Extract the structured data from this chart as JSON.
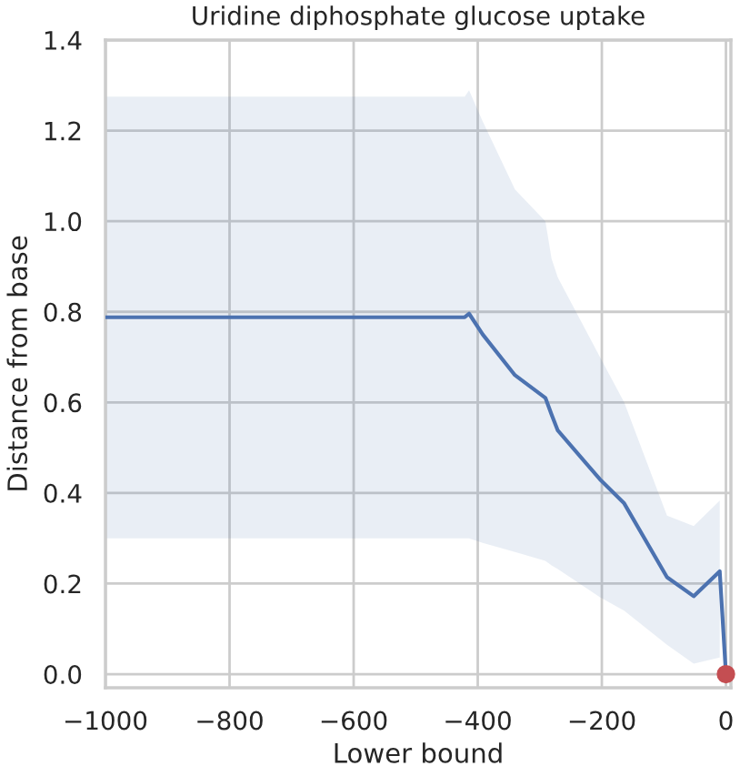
{
  "chart_data": {
    "type": "line",
    "title": "Uridine diphosphate glucose uptake",
    "xlabel": "Lower bound",
    "ylabel": "Distance from base",
    "series": [
      {
        "color": "#4c72b0",
        "x": [
          -1000,
          -421,
          -414,
          -392,
          -340,
          -291,
          -281,
          -271,
          -203,
          -164,
          -95,
          -52,
          -10,
          0
        ],
        "values": [
          0.788,
          0.788,
          0.796,
          0.75,
          0.66,
          0.61,
          0.573,
          0.538,
          0.43,
          0.377,
          0.214,
          0.172,
          0.227,
          0
        ],
        "upper": [
          1.275,
          1.275,
          1.289,
          1.22,
          1.07,
          1.0,
          0.917,
          0.876,
          0.7,
          0.6,
          0.35,
          0.327,
          0.383,
          null
        ],
        "lower": [
          0.3,
          0.3,
          0.3,
          0.29,
          0.27,
          0.25,
          0.24,
          0.232,
          0.17,
          0.14,
          0.065,
          0.023,
          0.037,
          null
        ]
      },
      {
        "type": "scatter",
        "color": "#c44e52",
        "x": [
          0
        ],
        "values": [
          0
        ],
        "marker": "circle"
      }
    ],
    "xlim": [
      -1000,
      8
    ],
    "xticks": [
      -1000,
      -800,
      -600,
      -400,
      -200,
      0
    ],
    "ylim": [
      -0.03,
      1.4
    ],
    "yticks": [
      {
        "value": 0,
        "label": "0.0"
      },
      0.2,
      0.4,
      0.6,
      0.8,
      {
        "value": 1,
        "label": "1.0"
      },
      1.2,
      1.4
    ],
    "grid": true
  }
}
